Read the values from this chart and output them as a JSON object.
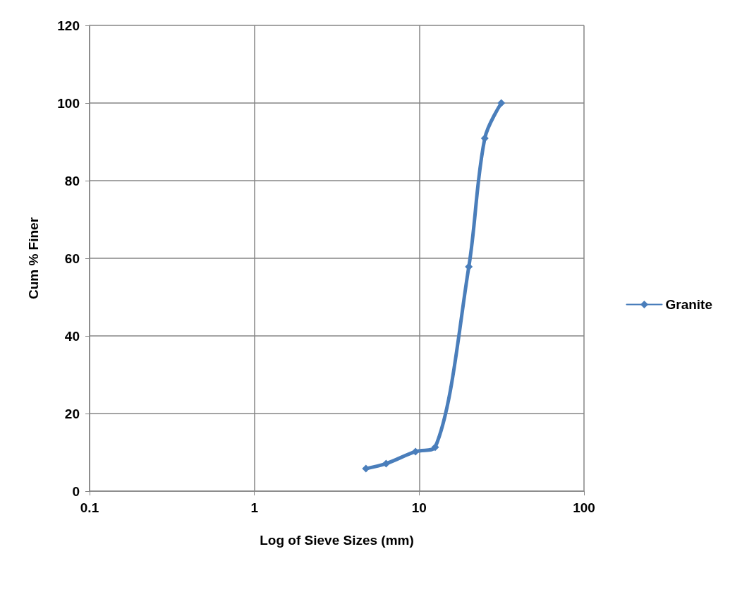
{
  "chart_data": {
    "type": "line",
    "xlabel": "Log of Sieve Sizes (mm)",
    "ylabel": "Cum % Finer",
    "log": "x",
    "xlim": [
      0.1,
      100
    ],
    "xticks": [
      0.1,
      1,
      10,
      100
    ],
    "ylim": [
      0,
      120
    ],
    "yticks": [
      0,
      20,
      40,
      60,
      80,
      100,
      120
    ],
    "grid": true,
    "legend": "right",
    "marker": "diamond",
    "line_style": "solid",
    "series": [
      {
        "name": "Granite",
        "color": "#4a7ebb",
        "x": [
          4.75,
          6.3,
          9.5,
          12.5,
          20,
          25,
          31.5
        ],
        "values": [
          5.8,
          7.1,
          10.2,
          11.3,
          57.8,
          90.9,
          100
        ]
      }
    ]
  }
}
